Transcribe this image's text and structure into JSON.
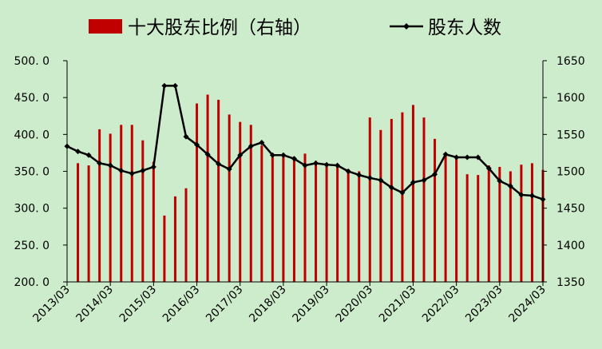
{
  "chart_data": {
    "type": "bar+line",
    "title": "",
    "colors": {
      "background": "#cdeccb",
      "bar": "#c00000",
      "line": "#000000",
      "axis": "#000000"
    },
    "legend": {
      "placement": "top",
      "entries": [
        {
          "label": "十大股东比例（右轴）",
          "kind": "bar"
        },
        {
          "label": "股东人数",
          "kind": "line"
        }
      ]
    },
    "left_axis": {
      "min": 200,
      "max": 500,
      "ticks": [
        "200. 0",
        "250. 0",
        "300. 0",
        "350. 0",
        "400. 0",
        "450. 0",
        "500. 0"
      ]
    },
    "right_axis": {
      "min": 1350,
      "max": 1650,
      "ticks": [
        "1350",
        "1400",
        "1450",
        "1500",
        "1550",
        "1600",
        "1650"
      ]
    },
    "x_labels": [
      "2013/03",
      "2014/03",
      "2015/03",
      "2016/03",
      "2017/03",
      "2018/03",
      "2019/03",
      "2020/03",
      "2021/03",
      "2022/03",
      "2023/03",
      "2024/03"
    ],
    "x_label_every": 4,
    "series": [
      {
        "name": "十大股东比例（右轴）",
        "axis": "right",
        "type": "bar",
        "values": [
          null,
          1511,
          1508,
          1557,
          1551,
          1563,
          1563,
          1542,
          1513,
          1440,
          1466,
          1477,
          1592,
          1604,
          1597,
          1577,
          1567,
          1563,
          1535,
          1523,
          1522,
          1520,
          1524,
          1514,
          1511,
          1508,
          1503,
          1500,
          1573,
          1556,
          1571,
          1580,
          1590,
          1573,
          1544,
          1523,
          1520,
          1496,
          1495,
          1508,
          1506,
          1500,
          1509,
          1511,
          1502
        ]
      },
      {
        "name": "股东人数",
        "axis": "left",
        "type": "line",
        "values": [
          384,
          377,
          372,
          361,
          358,
          351,
          347,
          351,
          356,
          466,
          466,
          397,
          386,
          373,
          360,
          353,
          372,
          384,
          389,
          372,
          372,
          367,
          358,
          361,
          359,
          358,
          350,
          345,
          341,
          338,
          328,
          321,
          335,
          338,
          346,
          373,
          369,
          369,
          369,
          354,
          337,
          330,
          318,
          317,
          312
        ]
      }
    ]
  }
}
